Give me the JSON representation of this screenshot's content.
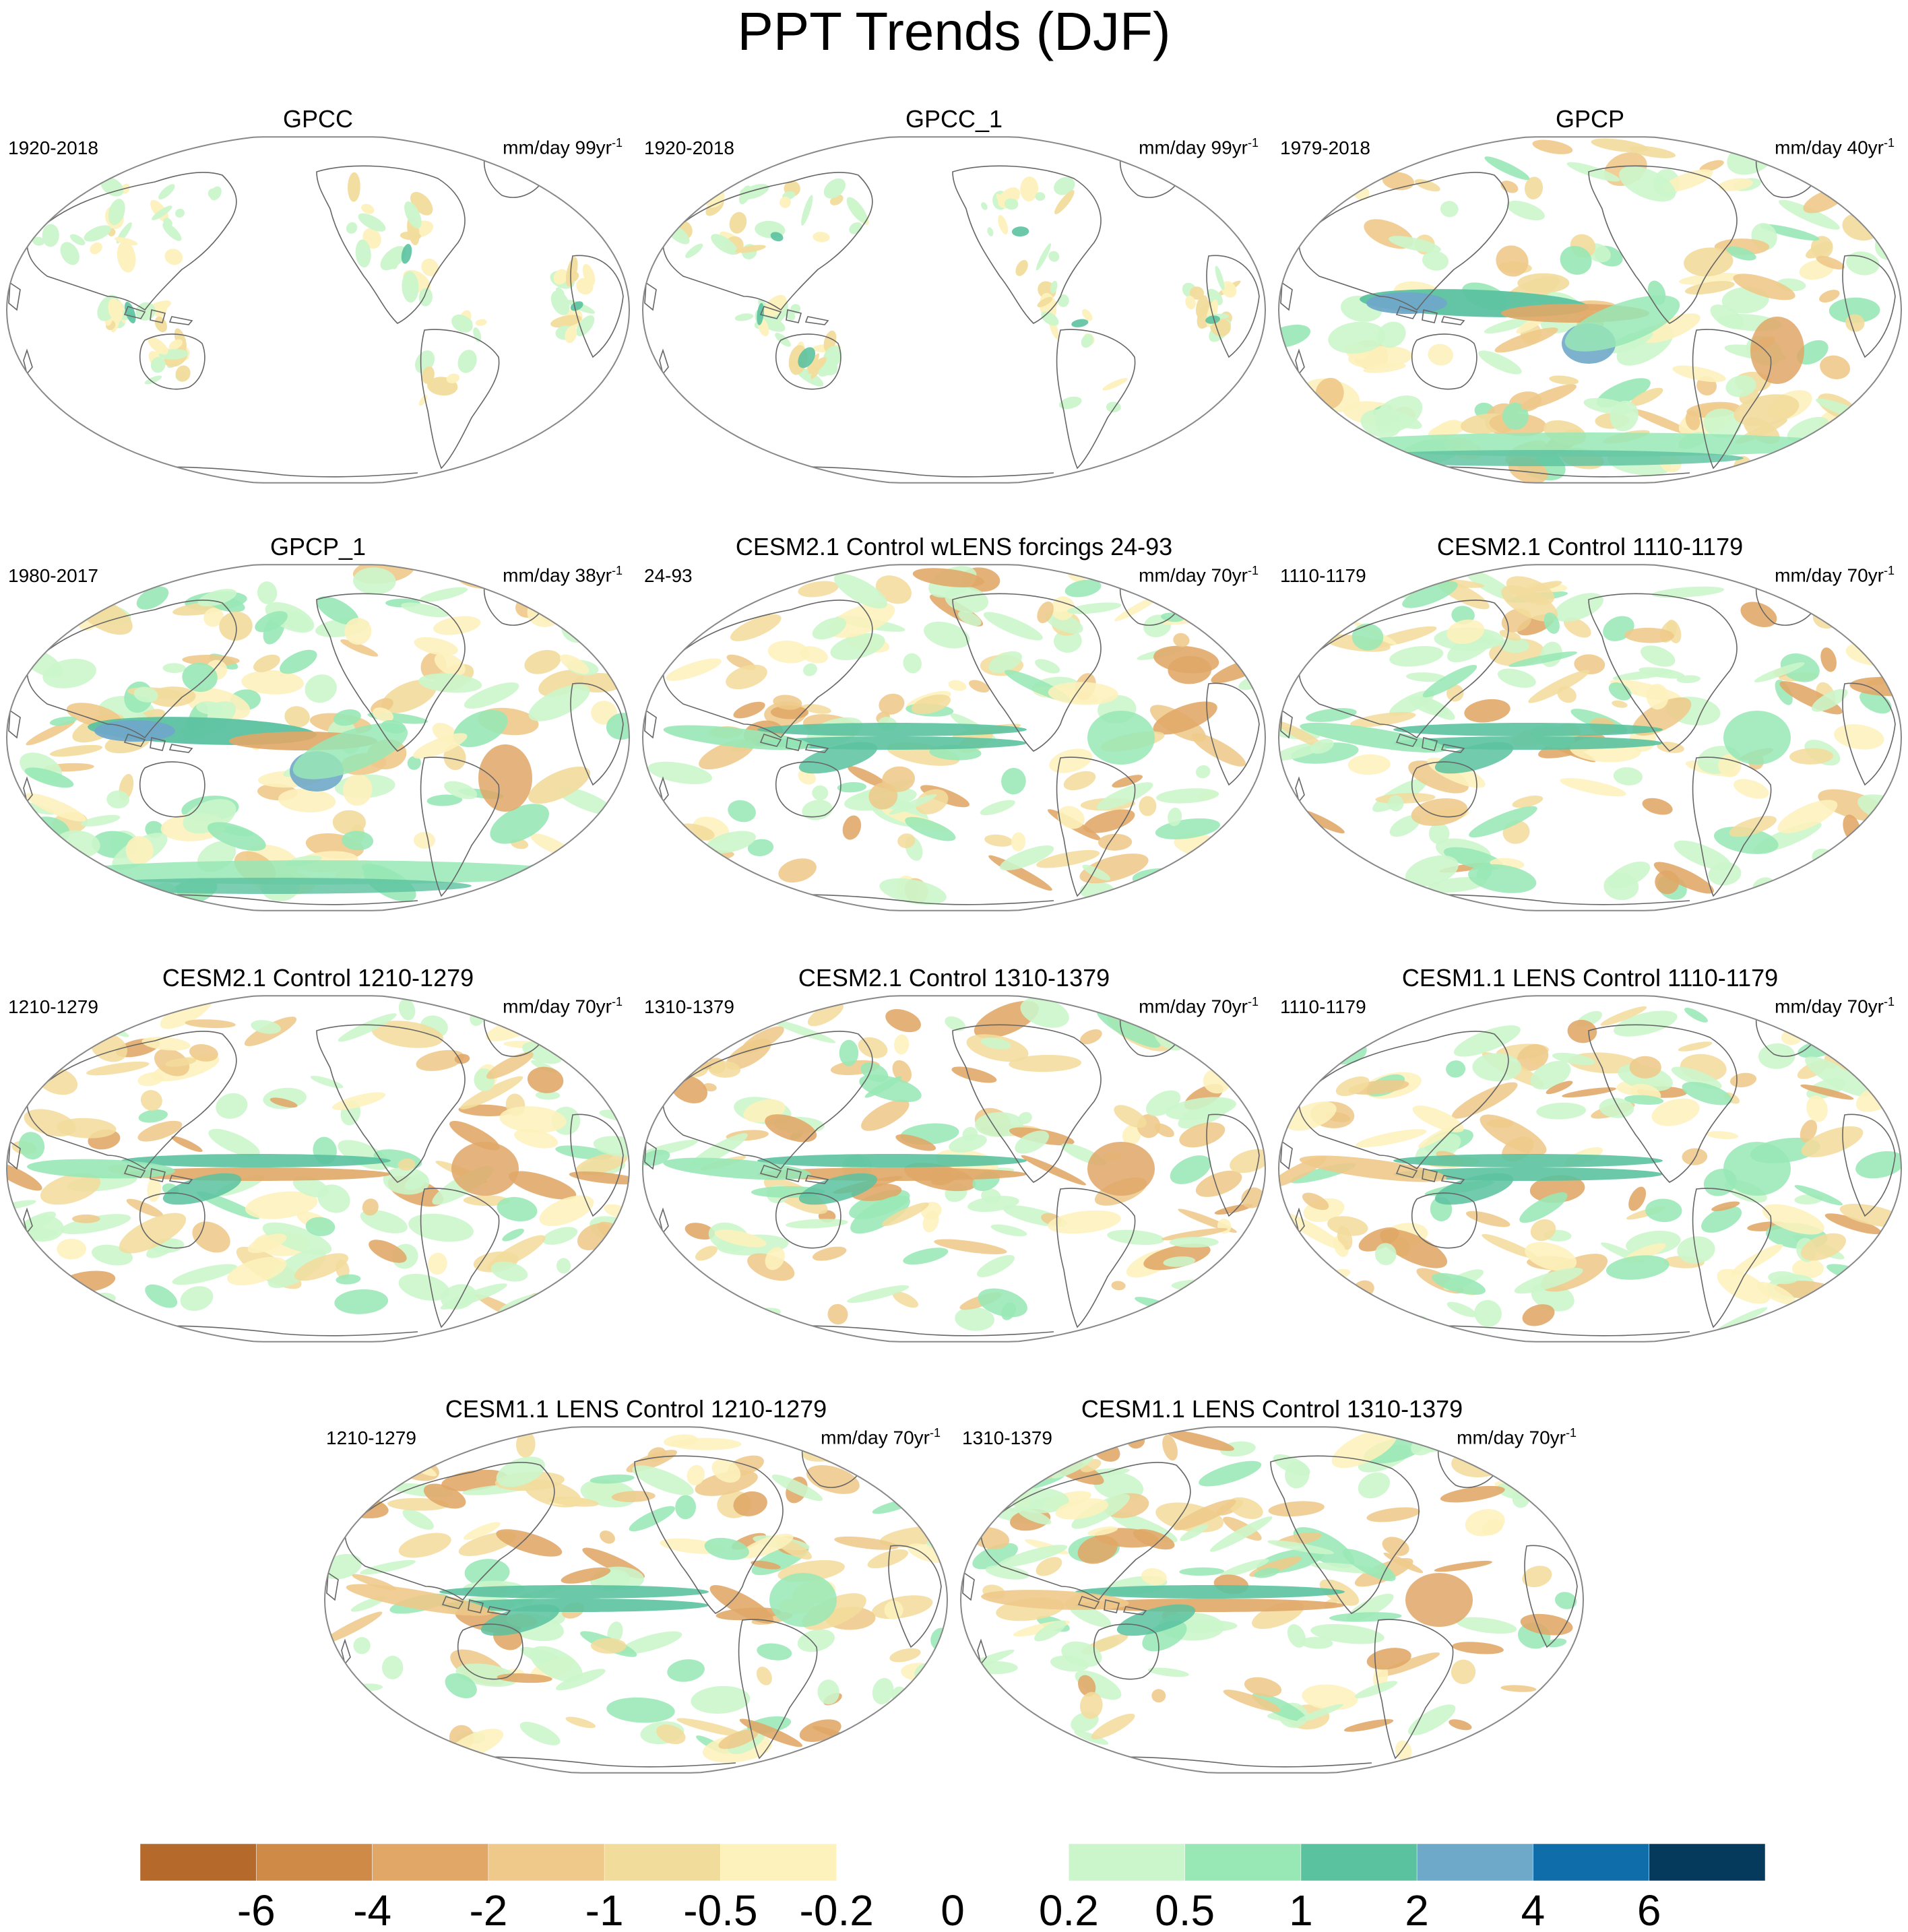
{
  "title": "PPT Trends (DJF)",
  "panels": [
    {
      "title": "GPCC",
      "period": "1920-2018",
      "units": "mm/day 99yr",
      "units_exp": "-1",
      "pattern": "gpcc"
    },
    {
      "title": "GPCC_1",
      "period": "1920-2018",
      "units": "mm/day 99yr",
      "units_exp": "-1",
      "pattern": "gpcc"
    },
    {
      "title": "GPCP",
      "period": "1979-2018",
      "units": "mm/day 40yr",
      "units_exp": "-1",
      "pattern": "obs"
    },
    {
      "title": "GPCP_1",
      "period": "1980-2017",
      "units": "mm/day 38yr",
      "units_exp": "-1",
      "pattern": "obs"
    },
    {
      "title": "CESM2.1 Control wLENS forcings 24-93",
      "period": "24-93",
      "units": "mm/day 70yr",
      "units_exp": "-1",
      "pattern": "model"
    },
    {
      "title": "CESM2.1 Control 1110-1179",
      "period": "1110-1179",
      "units": "mm/day 70yr",
      "units_exp": "-1",
      "pattern": "model"
    },
    {
      "title": "CESM2.1 Control 1210-1279",
      "period": "1210-1279",
      "units": "mm/day 70yr",
      "units_exp": "-1",
      "pattern": "model"
    },
    {
      "title": "CESM2.1 Control 1310-1379",
      "period": "1310-1379",
      "units": "mm/day 70yr",
      "units_exp": "-1",
      "pattern": "model"
    },
    {
      "title": "CESM1.1 LENS Control 1110-1179",
      "period": "1110-1179",
      "units": "mm/day 70yr",
      "units_exp": "-1",
      "pattern": "model"
    },
    {
      "title": "CESM1.1 LENS Control 1210-1279",
      "period": "1210-1279",
      "units": "mm/day 70yr",
      "units_exp": "-1",
      "pattern": "model"
    },
    {
      "title": "CESM1.1 LENS Control 1310-1379",
      "period": "1310-1379",
      "units": "mm/day 70yr",
      "units_exp": "-1",
      "pattern": "model"
    }
  ],
  "colorbar": {
    "colors": [
      "#b5692b",
      "#cf8a48",
      "#e0a767",
      "#eec98a",
      "#f2dc9c",
      "#fdf1bc",
      "#ffffff",
      "#ffffff",
      "#cbf6cb",
      "#98e8b6",
      "#5bc2a0",
      "#6fa9c9",
      "#0f6eaa",
      "#063a5c"
    ],
    "labels": [
      "-6",
      "-4",
      "-2",
      "-1",
      "-0.5",
      "-0.2",
      "0",
      "0.2",
      "0.5",
      "1",
      "2",
      "4",
      "6"
    ]
  },
  "colors": {
    "land_outline": "#666666",
    "map_border": "#888888"
  }
}
